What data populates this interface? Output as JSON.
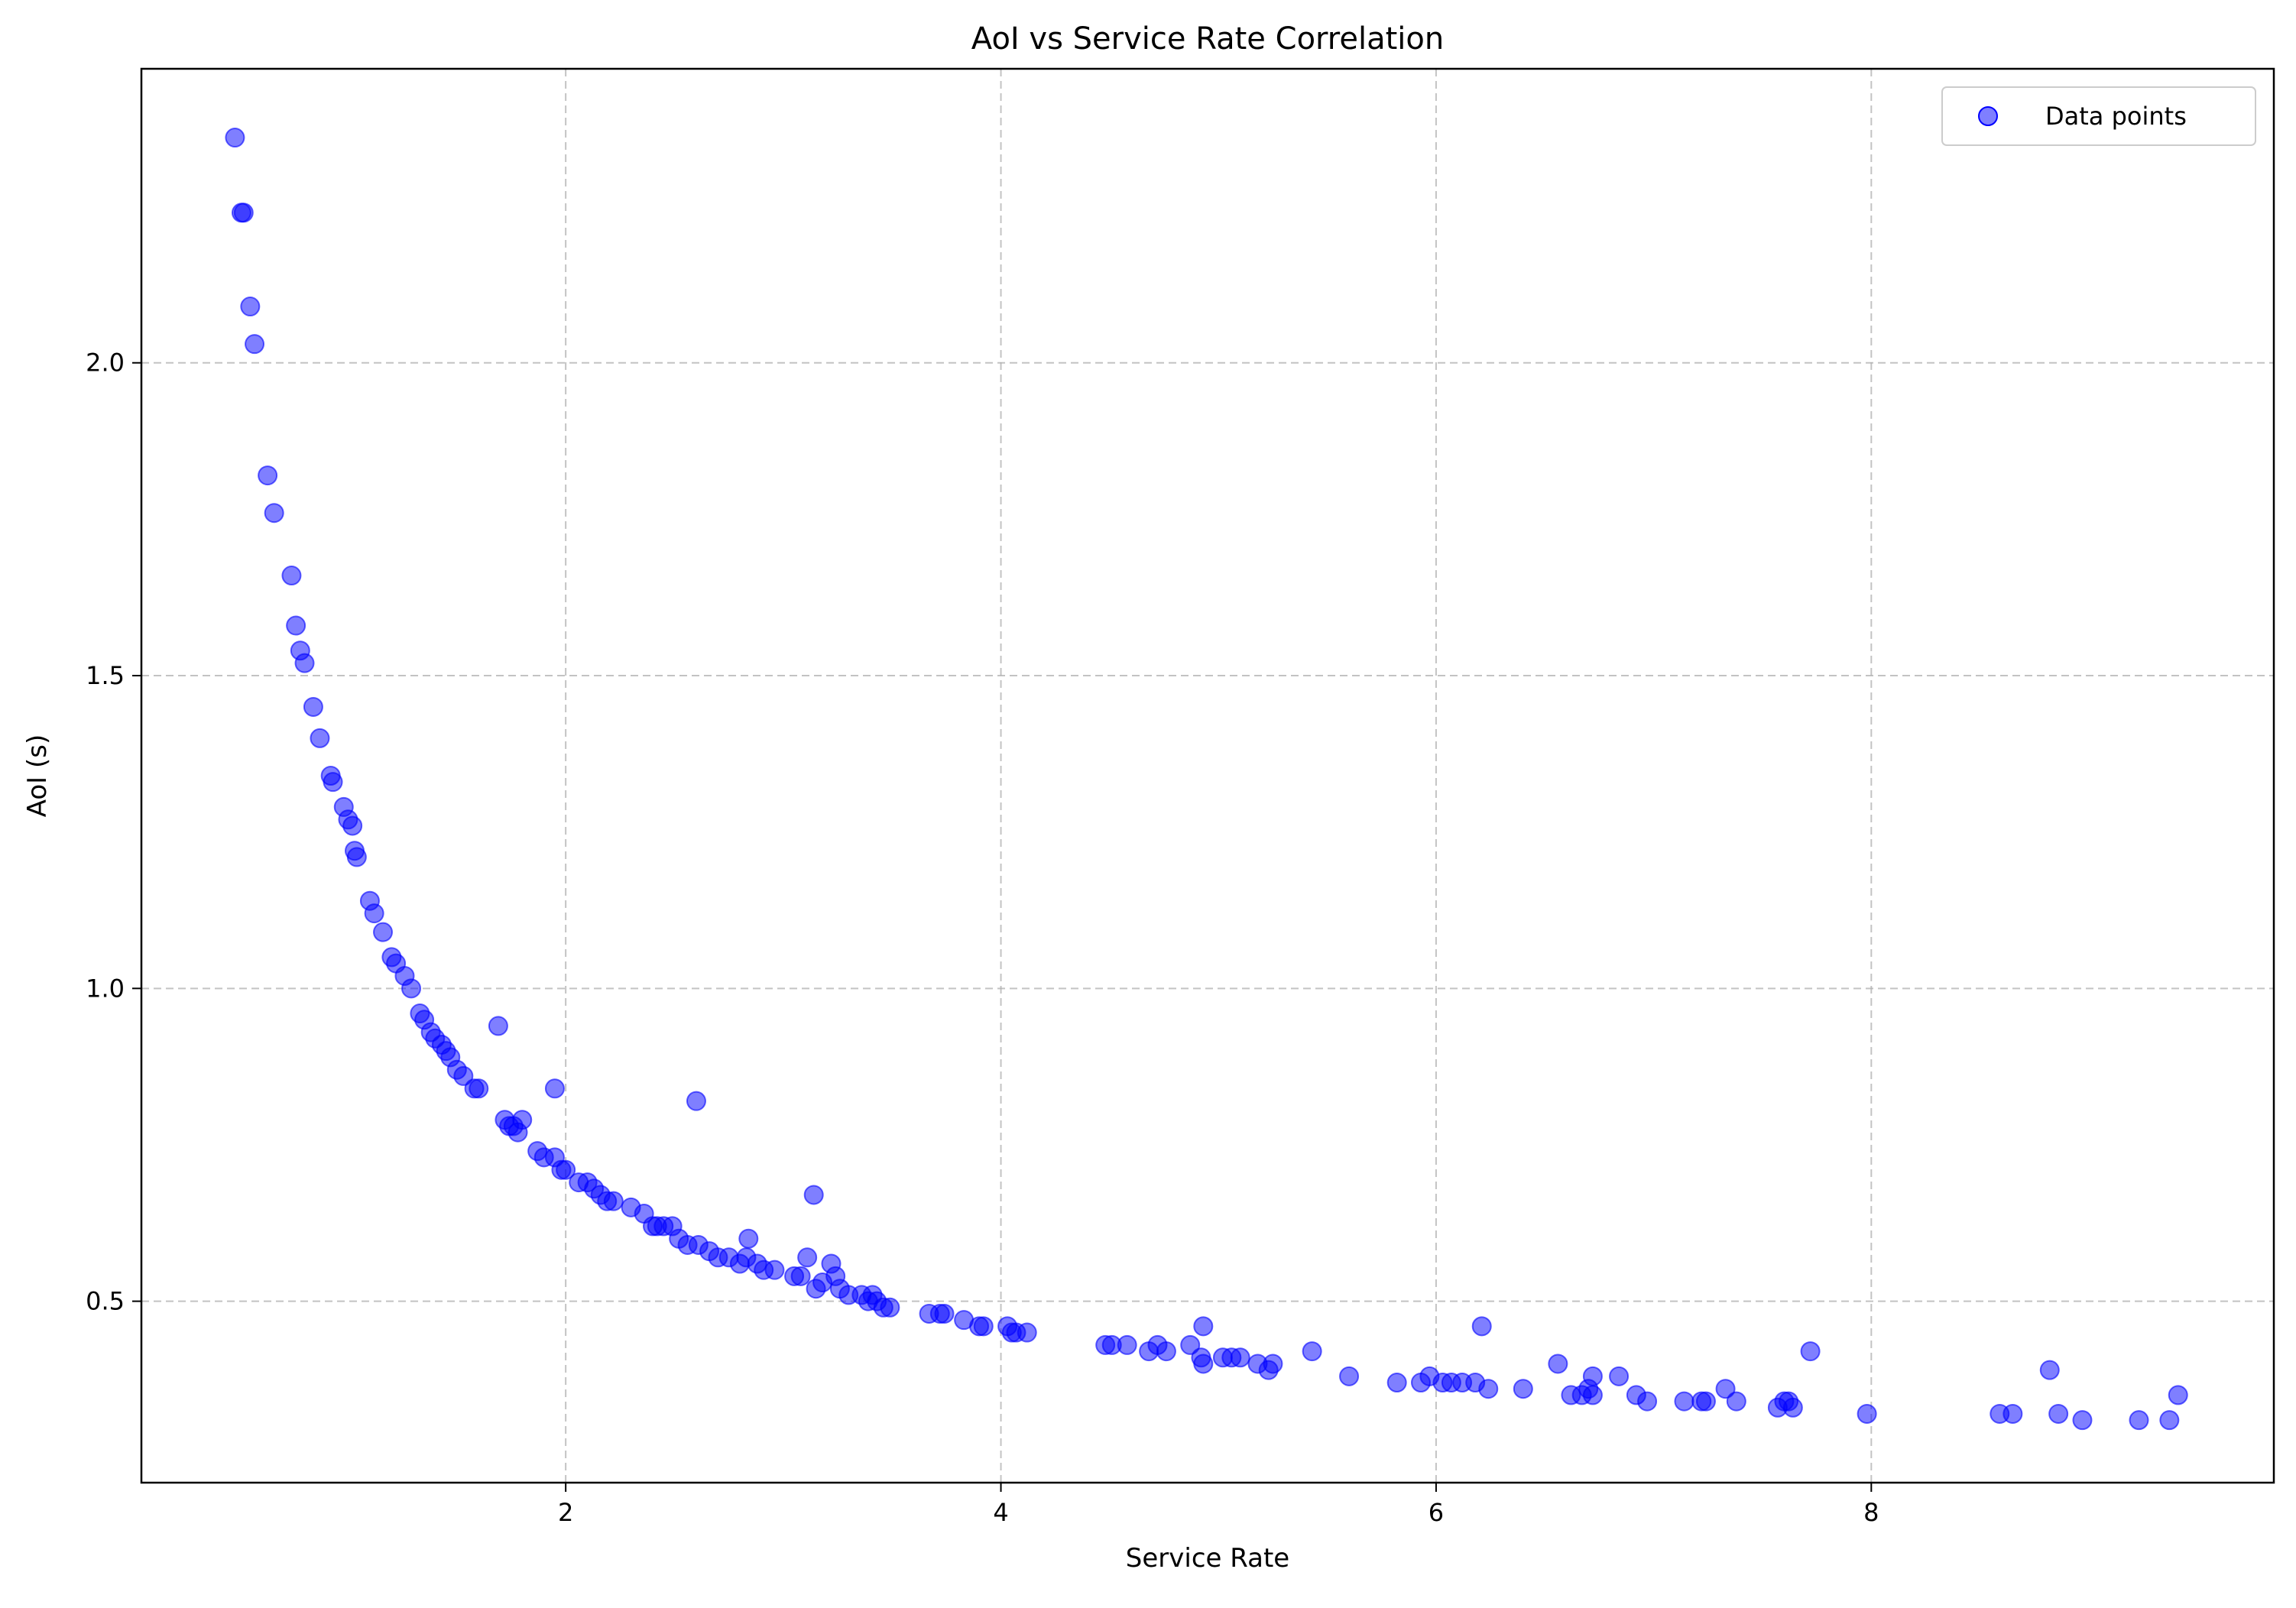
{
  "chart_data": {
    "type": "scatter",
    "title": "AoI vs Service Rate Correlation",
    "xlabel": "Service Rate",
    "ylabel": "AoI (s)",
    "xlim": [
      0.05,
      9.85
    ],
    "ylim": [
      0.21,
      2.47
    ],
    "xticks": [
      2,
      4,
      6,
      8
    ],
    "yticks": [
      0.5,
      1.0,
      1.5,
      2.0
    ],
    "xtick_labels": [
      "2",
      "4",
      "6",
      "8"
    ],
    "ytick_labels": [
      "0.5",
      "1.0",
      "1.5",
      "2.0"
    ],
    "grid": true,
    "legend": {
      "position": "top-right",
      "entries": [
        "Data points"
      ]
    },
    "colors": {
      "points": "#0000ff"
    },
    "series": [
      {
        "name": "Data points",
        "points": [
          [
            0.48,
            2.36
          ],
          [
            0.51,
            2.24
          ],
          [
            0.52,
            2.24
          ],
          [
            0.55,
            2.09
          ],
          [
            0.57,
            2.03
          ],
          [
            0.63,
            1.82
          ],
          [
            0.66,
            1.76
          ],
          [
            0.74,
            1.66
          ],
          [
            0.76,
            1.58
          ],
          [
            0.78,
            1.54
          ],
          [
            0.8,
            1.52
          ],
          [
            0.84,
            1.45
          ],
          [
            0.87,
            1.4
          ],
          [
            0.92,
            1.34
          ],
          [
            0.93,
            1.33
          ],
          [
            0.98,
            1.29
          ],
          [
            1.0,
            1.27
          ],
          [
            1.02,
            1.26
          ],
          [
            1.03,
            1.22
          ],
          [
            1.04,
            1.21
          ],
          [
            1.1,
            1.14
          ],
          [
            1.12,
            1.12
          ],
          [
            1.16,
            1.09
          ],
          [
            1.2,
            1.05
          ],
          [
            1.22,
            1.04
          ],
          [
            1.26,
            1.02
          ],
          [
            1.29,
            1.0
          ],
          [
            1.33,
            0.96
          ],
          [
            1.35,
            0.95
          ],
          [
            1.38,
            0.93
          ],
          [
            1.4,
            0.92
          ],
          [
            1.43,
            0.91
          ],
          [
            1.45,
            0.9
          ],
          [
            1.47,
            0.89
          ],
          [
            1.5,
            0.87
          ],
          [
            1.53,
            0.86
          ],
          [
            1.58,
            0.84
          ],
          [
            1.6,
            0.84
          ],
          [
            1.69,
            0.94
          ],
          [
            1.72,
            0.79
          ],
          [
            1.74,
            0.78
          ],
          [
            1.76,
            0.78
          ],
          [
            1.78,
            0.77
          ],
          [
            1.8,
            0.79
          ],
          [
            1.87,
            0.74
          ],
          [
            1.9,
            0.73
          ],
          [
            1.95,
            0.84
          ],
          [
            1.95,
            0.73
          ],
          [
            1.98,
            0.71
          ],
          [
            2.0,
            0.71
          ],
          [
            2.06,
            0.69
          ],
          [
            2.1,
            0.69
          ],
          [
            2.13,
            0.68
          ],
          [
            2.16,
            0.67
          ],
          [
            2.19,
            0.66
          ],
          [
            2.22,
            0.66
          ],
          [
            2.3,
            0.65
          ],
          [
            2.36,
            0.64
          ],
          [
            2.4,
            0.62
          ],
          [
            2.42,
            0.62
          ],
          [
            2.45,
            0.62
          ],
          [
            2.49,
            0.62
          ],
          [
            2.52,
            0.6
          ],
          [
            2.56,
            0.59
          ],
          [
            2.6,
            0.82
          ],
          [
            2.61,
            0.59
          ],
          [
            2.66,
            0.58
          ],
          [
            2.7,
            0.57
          ],
          [
            2.75,
            0.57
          ],
          [
            2.8,
            0.56
          ],
          [
            2.83,
            0.57
          ],
          [
            2.84,
            0.6
          ],
          [
            2.88,
            0.56
          ],
          [
            2.91,
            0.55
          ],
          [
            2.96,
            0.55
          ],
          [
            3.05,
            0.54
          ],
          [
            3.08,
            0.54
          ],
          [
            3.11,
            0.57
          ],
          [
            3.14,
            0.67
          ],
          [
            3.15,
            0.52
          ],
          [
            3.18,
            0.53
          ],
          [
            3.22,
            0.56
          ],
          [
            3.24,
            0.54
          ],
          [
            3.26,
            0.52
          ],
          [
            3.3,
            0.51
          ],
          [
            3.36,
            0.51
          ],
          [
            3.39,
            0.5
          ],
          [
            3.41,
            0.51
          ],
          [
            3.43,
            0.5
          ],
          [
            3.46,
            0.49
          ],
          [
            3.49,
            0.49
          ],
          [
            3.67,
            0.48
          ],
          [
            3.72,
            0.48
          ],
          [
            3.74,
            0.48
          ],
          [
            3.83,
            0.47
          ],
          [
            3.9,
            0.46
          ],
          [
            3.92,
            0.46
          ],
          [
            4.03,
            0.46
          ],
          [
            4.05,
            0.45
          ],
          [
            4.07,
            0.45
          ],
          [
            4.12,
            0.45
          ],
          [
            4.48,
            0.43
          ],
          [
            4.51,
            0.43
          ],
          [
            4.58,
            0.43
          ],
          [
            4.68,
            0.42
          ],
          [
            4.72,
            0.43
          ],
          [
            4.76,
            0.42
          ],
          [
            4.87,
            0.43
          ],
          [
            4.92,
            0.41
          ],
          [
            4.93,
            0.46
          ],
          [
            4.93,
            0.4
          ],
          [
            5.02,
            0.41
          ],
          [
            5.06,
            0.41
          ],
          [
            5.1,
            0.41
          ],
          [
            5.18,
            0.4
          ],
          [
            5.23,
            0.39
          ],
          [
            5.25,
            0.4
          ],
          [
            5.43,
            0.42
          ],
          [
            5.6,
            0.38
          ],
          [
            5.82,
            0.37
          ],
          [
            5.93,
            0.37
          ],
          [
            5.97,
            0.38
          ],
          [
            6.03,
            0.37
          ],
          [
            6.07,
            0.37
          ],
          [
            6.12,
            0.37
          ],
          [
            6.18,
            0.37
          ],
          [
            6.21,
            0.46
          ],
          [
            6.24,
            0.36
          ],
          [
            6.4,
            0.36
          ],
          [
            6.56,
            0.4
          ],
          [
            6.62,
            0.35
          ],
          [
            6.67,
            0.35
          ],
          [
            6.7,
            0.36
          ],
          [
            6.72,
            0.38
          ],
          [
            6.72,
            0.35
          ],
          [
            6.84,
            0.38
          ],
          [
            6.92,
            0.35
          ],
          [
            6.97,
            0.34
          ],
          [
            7.14,
            0.34
          ],
          [
            7.22,
            0.34
          ],
          [
            7.24,
            0.34
          ],
          [
            7.33,
            0.36
          ],
          [
            7.38,
            0.34
          ],
          [
            7.57,
            0.33
          ],
          [
            7.6,
            0.34
          ],
          [
            7.62,
            0.34
          ],
          [
            7.64,
            0.33
          ],
          [
            7.72,
            0.42
          ],
          [
            7.98,
            0.32
          ],
          [
            8.59,
            0.32
          ],
          [
            8.65,
            0.32
          ],
          [
            8.82,
            0.39
          ],
          [
            8.86,
            0.32
          ],
          [
            8.97,
            0.31
          ],
          [
            9.23,
            0.31
          ],
          [
            9.37,
            0.31
          ],
          [
            9.41,
            0.35
          ]
        ]
      }
    ]
  }
}
